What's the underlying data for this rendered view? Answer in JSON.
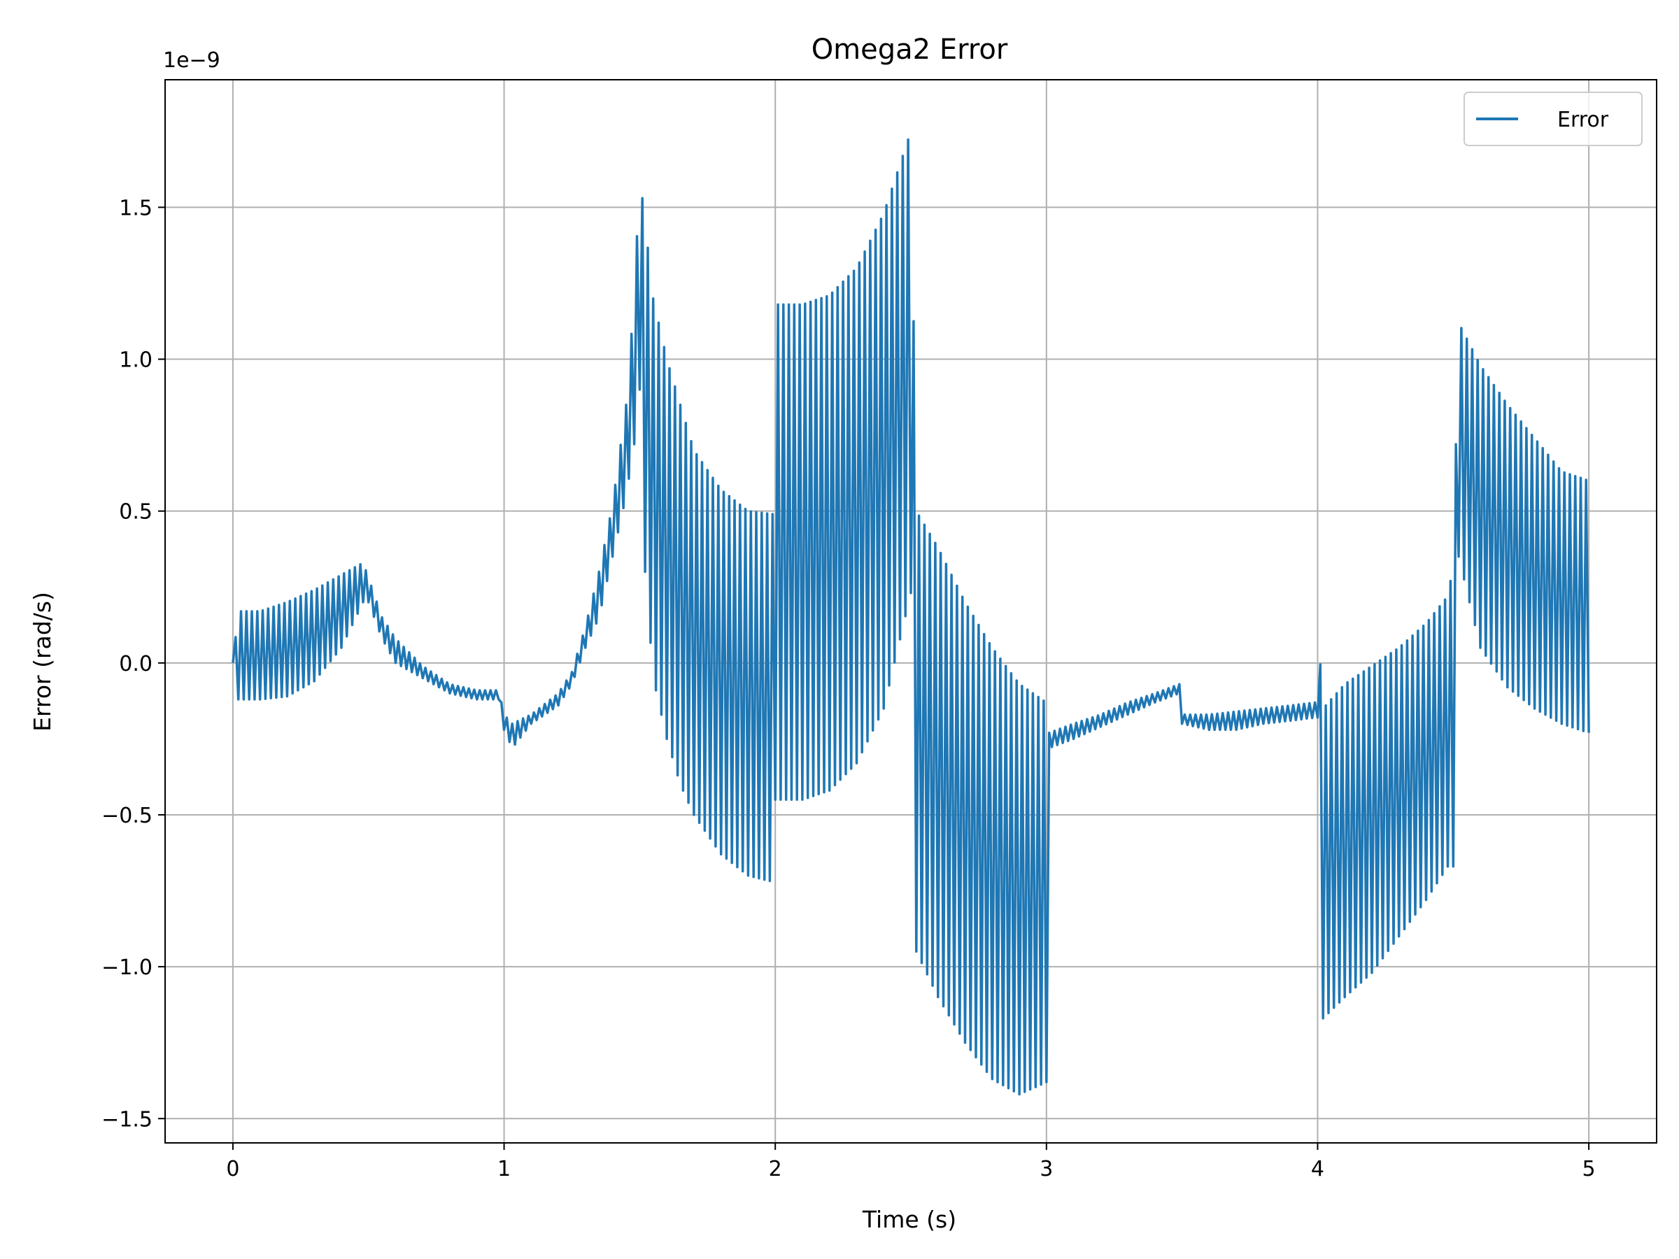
{
  "chart_data": {
    "type": "line",
    "title": "Omega2 Error",
    "xlabel": "Time (s)",
    "ylabel": "Error (rad/s)",
    "offset_text": "1e−9",
    "xlim": [
      -0.25,
      5.25
    ],
    "ylim": [
      -1.58,
      1.92
    ],
    "xticks": [
      0,
      1,
      2,
      3,
      4,
      5
    ],
    "xtick_labels": [
      "0",
      "1",
      "2",
      "3",
      "4",
      "5"
    ],
    "yticks": [
      -1.5,
      -1.0,
      -0.5,
      0.0,
      0.5,
      1.0,
      1.5
    ],
    "ytick_labels": [
      "−1.5",
      "−1.0",
      "−0.5",
      "0.0",
      "0.5",
      "1.0",
      "1.5"
    ],
    "grid": true,
    "legend_position": "top-right",
    "line_color": "#1f77b4",
    "oscillation_period_s": 0.02,
    "series": [
      {
        "name": "Error",
        "upper_envelope": [
          [
            0.0,
            0.0
          ],
          [
            0.02,
            0.17
          ],
          [
            0.1,
            0.17
          ],
          [
            0.2,
            0.2
          ],
          [
            0.3,
            0.24
          ],
          [
            0.4,
            0.29
          ],
          [
            0.48,
            0.33
          ],
          [
            0.5,
            0.28
          ],
          [
            0.55,
            0.15
          ],
          [
            0.6,
            0.08
          ],
          [
            0.7,
            -0.01
          ],
          [
            0.8,
            -0.07
          ],
          [
            0.9,
            -0.09
          ],
          [
            0.98,
            -0.09
          ],
          [
            1.0,
            -0.17
          ],
          [
            1.03,
            -0.2
          ],
          [
            1.1,
            -0.17
          ],
          [
            1.2,
            -0.1
          ],
          [
            1.25,
            -0.03
          ],
          [
            1.3,
            0.12
          ],
          [
            1.35,
            0.3
          ],
          [
            1.4,
            0.52
          ],
          [
            1.45,
            0.85
          ],
          [
            1.48,
            1.2
          ],
          [
            1.5,
            1.61
          ],
          [
            1.52,
            1.45
          ],
          [
            1.55,
            1.2
          ],
          [
            1.6,
            1.0
          ],
          [
            1.65,
            0.85
          ],
          [
            1.7,
            0.7
          ],
          [
            1.8,
            0.57
          ],
          [
            1.9,
            0.5
          ],
          [
            1.99,
            0.49
          ],
          [
            2.0,
            1.18
          ],
          [
            2.1,
            1.18
          ],
          [
            2.2,
            1.21
          ],
          [
            2.3,
            1.3
          ],
          [
            2.4,
            1.48
          ],
          [
            2.5,
            1.75
          ],
          [
            2.52,
            0.5
          ],
          [
            2.6,
            0.38
          ],
          [
            2.7,
            0.2
          ],
          [
            2.8,
            0.05
          ],
          [
            2.9,
            -0.07
          ],
          [
            3.0,
            -0.13
          ],
          [
            3.01,
            -0.23
          ],
          [
            3.1,
            -0.2
          ],
          [
            3.2,
            -0.17
          ],
          [
            3.3,
            -0.13
          ],
          [
            3.4,
            -0.1
          ],
          [
            3.49,
            -0.07
          ],
          [
            3.5,
            -0.17
          ],
          [
            3.6,
            -0.17
          ],
          [
            3.7,
            -0.16
          ],
          [
            3.8,
            -0.15
          ],
          [
            3.9,
            -0.14
          ],
          [
            3.99,
            -0.13
          ],
          [
            4.0,
            0.14
          ],
          [
            4.02,
            -0.15
          ],
          [
            4.1,
            -0.07
          ],
          [
            4.2,
            -0.01
          ],
          [
            4.3,
            0.05
          ],
          [
            4.4,
            0.13
          ],
          [
            4.48,
            0.22
          ],
          [
            4.5,
            0.32
          ],
          [
            4.52,
            1.12
          ],
          [
            4.6,
            0.98
          ],
          [
            4.7,
            0.85
          ],
          [
            4.8,
            0.74
          ],
          [
            4.9,
            0.63
          ],
          [
            5.0,
            0.6
          ]
        ],
        "lower_envelope": [
          [
            0.0,
            0.0
          ],
          [
            0.02,
            -0.12
          ],
          [
            0.1,
            -0.12
          ],
          [
            0.2,
            -0.11
          ],
          [
            0.3,
            -0.06
          ],
          [
            0.4,
            0.05
          ],
          [
            0.48,
            0.2
          ],
          [
            0.5,
            0.2
          ],
          [
            0.55,
            0.08
          ],
          [
            0.6,
            0.0
          ],
          [
            0.7,
            -0.05
          ],
          [
            0.8,
            -0.1
          ],
          [
            0.9,
            -0.12
          ],
          [
            0.98,
            -0.12
          ],
          [
            1.0,
            -0.22
          ],
          [
            1.03,
            -0.28
          ],
          [
            1.1,
            -0.2
          ],
          [
            1.2,
            -0.14
          ],
          [
            1.25,
            -0.07
          ],
          [
            1.3,
            0.05
          ],
          [
            1.35,
            0.15
          ],
          [
            1.4,
            0.35
          ],
          [
            1.45,
            0.55
          ],
          [
            1.48,
            0.72
          ],
          [
            1.5,
            0.9
          ],
          [
            1.52,
            0.3
          ],
          [
            1.55,
            -0.05
          ],
          [
            1.6,
            -0.25
          ],
          [
            1.65,
            -0.4
          ],
          [
            1.7,
            -0.5
          ],
          [
            1.8,
            -0.63
          ],
          [
            1.9,
            -0.7
          ],
          [
            1.99,
            -0.72
          ],
          [
            2.0,
            -0.45
          ],
          [
            2.1,
            -0.45
          ],
          [
            2.2,
            -0.42
          ],
          [
            2.3,
            -0.33
          ],
          [
            2.4,
            -0.15
          ],
          [
            2.5,
            0.23
          ],
          [
            2.52,
            -0.95
          ],
          [
            2.6,
            -1.1
          ],
          [
            2.7,
            -1.25
          ],
          [
            2.8,
            -1.37
          ],
          [
            2.9,
            -1.42
          ],
          [
            3.0,
            -1.38
          ],
          [
            3.01,
            -0.28
          ],
          [
            3.1,
            -0.25
          ],
          [
            3.2,
            -0.21
          ],
          [
            3.3,
            -0.17
          ],
          [
            3.4,
            -0.13
          ],
          [
            3.49,
            -0.1
          ],
          [
            3.5,
            -0.2
          ],
          [
            3.6,
            -0.22
          ],
          [
            3.7,
            -0.22
          ],
          [
            3.8,
            -0.2
          ],
          [
            3.9,
            -0.19
          ],
          [
            3.99,
            -0.18
          ],
          [
            4.0,
            -0.18
          ],
          [
            4.02,
            -1.17
          ],
          [
            4.1,
            -1.1
          ],
          [
            4.2,
            -1.02
          ],
          [
            4.3,
            -0.9
          ],
          [
            4.4,
            -0.78
          ],
          [
            4.48,
            -0.67
          ],
          [
            4.5,
            -0.67
          ],
          [
            4.52,
            0.35
          ],
          [
            4.6,
            0.05
          ],
          [
            4.7,
            -0.08
          ],
          [
            4.8,
            -0.15
          ],
          [
            4.9,
            -0.2
          ],
          [
            5.0,
            -0.23
          ]
        ]
      }
    ]
  }
}
